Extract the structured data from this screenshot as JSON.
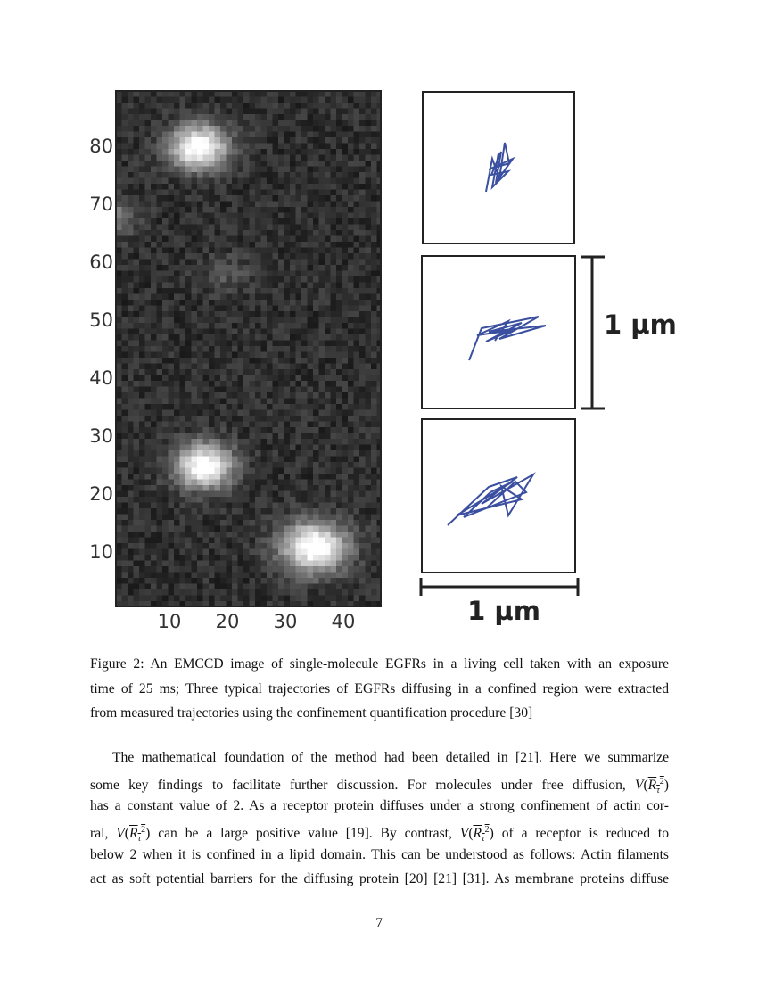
{
  "figure": {
    "image_yticks": [
      80,
      70,
      60,
      50,
      40,
      30,
      20,
      10
    ],
    "image_xticks": [
      10,
      20,
      30,
      40
    ],
    "vertical_scale_label": "1 µm",
    "horizontal_scale_label": "1 µm"
  },
  "caption": [
    "Figure 2:  An EMCCD image of single-molecule EGFRs in a living cell taken with an exposure",
    "time of 25 ms; Three typical trajectories of EGFRs diffusing in a confined region were extracted",
    "from measured trajectories using the confinement quantification procedure [30]"
  ],
  "math": {
    "func": "V",
    "base": "R",
    "sub": "τ",
    "sup": "2"
  },
  "paragraph": {
    "line1": "The mathematical foundation of the method had been detailed in [21].  Here we summarize",
    "line2": "some key findings to facilitate further discussion.  For molecules under free diffusion,",
    "line3": "has a constant value of 2. As a receptor protein diffuses under a strong confinement of actin cor-",
    "line4a": "ral,",
    "line4b": "can be a large positive value [19].  By contrast,",
    "line4c": "of a receptor is reduced to",
    "line5": "below 2 when it is confined in a lipid domain. This can be understood as follows: Actin filaments",
    "line6": "act as soft potential barriers for the diffusing protein [20] [21] [31]. As membrane proteins diffuse"
  },
  "page_number": "7"
}
